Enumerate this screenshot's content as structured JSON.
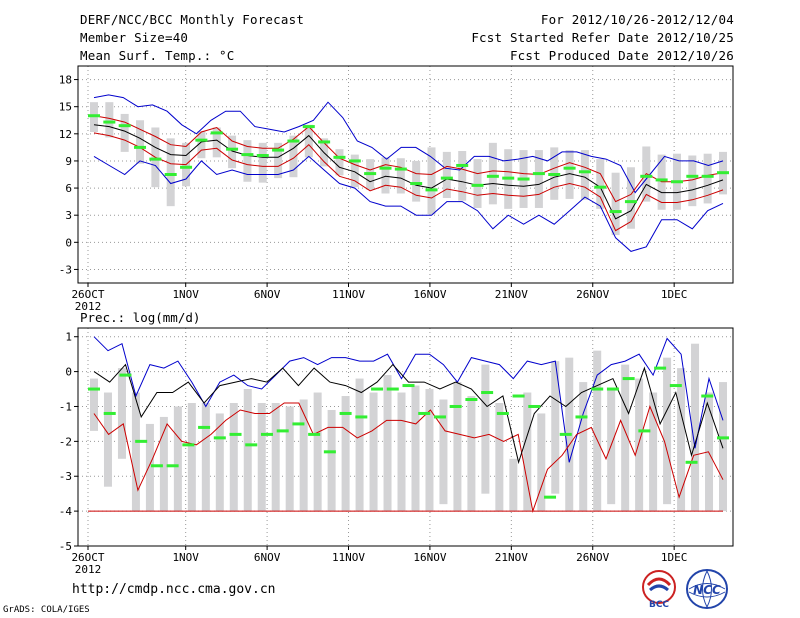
{
  "header": {
    "title": "DERF/NCC/BCC Monthly Forecast",
    "member_size": "Member Size=40",
    "variable": "Mean Surf. Temp.: °C",
    "period": "For 2012/10/26-2012/12/04",
    "started": "Fcst Started Refer Date 2012/10/25",
    "produced": "Fcst Produced Date 2012/10/26"
  },
  "footer": {
    "url": "http://cmdp.ncc.cma.gov.cn",
    "grads": "GrADS: COLA/IGES",
    "logo_bcc": "BCC",
    "logo_ncc": "NCC"
  },
  "colors": {
    "max_min": "#0000cc",
    "spread": "#cc0000",
    "mean": "#000000",
    "observed": "#33ee33",
    "bars": "#d3d3d5",
    "zero_line": "#cc0000"
  },
  "chart_data": [
    {
      "type": "line",
      "title": "Mean Surf. Temp.: °C",
      "x_tick_labels": [
        "26OCT",
        "1NOV",
        "6NOV",
        "11NOV",
        "16NOV",
        "21NOV",
        "26NOV",
        "1DEC"
      ],
      "x_tick_days": [
        0,
        6,
        11,
        16,
        21,
        26,
        31,
        36
      ],
      "year_label": "2012",
      "ylim": [
        -4.5,
        19.5
      ],
      "yticks": [
        -3,
        0,
        3,
        6,
        9,
        12,
        15,
        18
      ],
      "grid": true,
      "series": [
        {
          "name": "max",
          "values": [
            16,
            16.3,
            16,
            15,
            15.2,
            14.5,
            13,
            12,
            13.5,
            14.5,
            14.5,
            12.8,
            12.5,
            12.2,
            12.8,
            13.5,
            15.5,
            13.8,
            11.2,
            10.5,
            9.2,
            10.5,
            10.5,
            9.5,
            8.2,
            8,
            9.5,
            9.5,
            9,
            9.2,
            9.5,
            9,
            10,
            10,
            9.5,
            9.2,
            8.5,
            5.5,
            7.5,
            9.5,
            9,
            9,
            8.5,
            9
          ]
        },
        {
          "name": "upper",
          "values": [
            14,
            13.7,
            13.3,
            12.5,
            11.7,
            10.8,
            10.6,
            12.2,
            12.7,
            11.2,
            10.6,
            10.4,
            10.4,
            11.4,
            12.8,
            11,
            9.3,
            8.6,
            8,
            8.6,
            8.3,
            7.6,
            7.5,
            8.4,
            8.1,
            7.6,
            7.9,
            7.8,
            7.6,
            7.5,
            8.2,
            8.8,
            8.3,
            7.6,
            4.5,
            5.3,
            7.6,
            6.7,
            6.7,
            6.9,
            7.4,
            7.7
          ]
        },
        {
          "name": "mean",
          "values": [
            13,
            12.8,
            12.3,
            11.5,
            10.5,
            9.7,
            9.6,
            11.1,
            11.3,
            10.1,
            9.6,
            9.4,
            9.4,
            10.4,
            11.8,
            9.9,
            8.3,
            7.8,
            6.7,
            7.3,
            7.1,
            6.3,
            6,
            7,
            6.7,
            6.3,
            6.5,
            6.3,
            6.2,
            6.4,
            7.2,
            7.6,
            7.2,
            6.1,
            2.6,
            3.5,
            6.4,
            5.5,
            5.5,
            5.8,
            6.3,
            6.9
          ]
        },
        {
          "name": "lower",
          "values": [
            12.1,
            11.8,
            11.3,
            10.5,
            9.4,
            8.7,
            8.6,
            10.2,
            10.4,
            9.1,
            8.6,
            8.4,
            8.4,
            9.3,
            10.8,
            8.9,
            7.3,
            6.8,
            5.7,
            6.3,
            6.1,
            5.2,
            4.9,
            5.9,
            5.6,
            5.2,
            5.4,
            5.2,
            5.1,
            5.3,
            6.1,
            6.5,
            6.1,
            5,
            1.3,
            2.3,
            5.3,
            4.4,
            4.4,
            4.7,
            5.2,
            5.8
          ]
        },
        {
          "name": "min",
          "values": [
            9.5,
            8.5,
            7.5,
            9,
            8.5,
            6.5,
            7,
            9,
            7.5,
            8,
            7.5,
            7.5,
            7.5,
            8,
            9.5,
            8,
            6.5,
            6,
            4.5,
            4,
            4,
            3,
            3,
            4.5,
            4.5,
            3.5,
            1.5,
            3,
            2,
            3,
            2,
            3.5,
            5,
            4,
            0.5,
            -1,
            -0.5,
            2.5,
            2.5,
            1.5,
            3.5,
            4.3
          ]
        },
        {
          "name": "observed",
          "values": [
            14,
            13.3,
            12.9,
            10.5,
            9.2,
            7.5,
            8.3,
            11.3,
            12.1,
            10.3,
            9.7,
            9.6,
            10.2,
            11.2,
            12.8,
            11.1,
            9.4,
            9,
            7.6,
            8.2,
            8.1,
            6.5,
            5.8,
            7.1,
            8.5,
            6.3,
            7.3,
            7.1,
            7,
            7.6,
            7.5,
            8.2,
            7.8,
            6.1,
            3.4,
            4.5,
            7.3,
            6.9,
            6.7,
            7.3,
            7.3,
            7.7
          ]
        },
        {
          "name": "bar_top",
          "values": [
            15.5,
            15.5,
            14.2,
            13.5,
            12.7,
            11.5,
            11,
            12.3,
            12.7,
            11.8,
            11.3,
            11,
            11,
            11.8,
            13,
            11.5,
            10.3,
            9.7,
            9.2,
            9.4,
            9.3,
            9,
            10.5,
            10,
            10.1,
            9.2,
            11,
            10.3,
            10.2,
            10.2,
            10.5,
            10.2,
            10.2,
            9.2,
            7.7,
            8.3,
            10.6,
            9.7,
            9.8,
            9.6,
            9.8,
            10
          ]
        },
        {
          "name": "bar_bottom",
          "values": [
            12.2,
            11.6,
            10,
            8.7,
            6.1,
            4,
            6.2,
            9.3,
            9.4,
            8.2,
            6.7,
            6.6,
            7.1,
            7.2,
            9.4,
            8.4,
            7.4,
            6.1,
            5.8,
            5.4,
            5.4,
            4.5,
            3.1,
            4.9,
            4.6,
            3.8,
            4.2,
            3.7,
            3.8,
            3.8,
            4.7,
            4.8,
            4.7,
            3.7,
            0.8,
            1.5,
            4.5,
            3.6,
            3.6,
            4,
            4.3,
            5.3
          ]
        }
      ]
    },
    {
      "type": "line",
      "title": "Prec.: log(mm/d)",
      "x_tick_labels": [
        "26OCT",
        "1NOV",
        "6NOV",
        "11NOV",
        "16NOV",
        "21NOV",
        "26NOV",
        "1DEC"
      ],
      "x_tick_days": [
        0,
        6,
        11,
        16,
        21,
        26,
        31,
        36
      ],
      "year_label": "2012",
      "ylim": [
        -5,
        1.25
      ],
      "yticks": [
        -5,
        -4,
        -3,
        -2,
        -1,
        0,
        1
      ],
      "grid": true,
      "zero_reference": -4,
      "series": [
        {
          "name": "max",
          "values": [
            1,
            0.6,
            0.8,
            -0.7,
            0.2,
            0.1,
            0.3,
            -0.3,
            -1,
            -0.3,
            -0.1,
            -0.4,
            -0.5,
            -0.1,
            0.3,
            0.4,
            0.2,
            0.4,
            0.4,
            0.3,
            0.3,
            0.5,
            -0.2,
            0.5,
            0.5,
            0.2,
            -0.3,
            0.4,
            0.3,
            0.2,
            -0.2,
            0.3,
            0.2,
            0.3,
            -2.6,
            -1.2,
            -0.1,
            0.2,
            0.3,
            0.5,
            -0.1,
            0.95,
            0.5,
            -2.2,
            -0.2,
            -1.4
          ]
        },
        {
          "name": "mean",
          "values": [
            0,
            -0.3,
            0.2,
            -1.3,
            -0.6,
            -0.6,
            -0.3,
            -0.9,
            -0.4,
            -0.3,
            -0.2,
            -0.3,
            0.1,
            -0.4,
            0.1,
            -0.3,
            -0.4,
            -0.6,
            -0.3,
            0.2,
            -0.3,
            -0.3,
            -0.5,
            -0.3,
            -0.5,
            -1,
            -0.7,
            -2.6,
            -1.2,
            -0.7,
            -1,
            -0.6,
            -0.4,
            -0.2,
            -1.2,
            0.1,
            -1.5,
            -0.6,
            -2.4,
            -0.9,
            -2.2
          ]
        },
        {
          "name": "spread",
          "values": [
            -1.2,
            -1.8,
            -1.5,
            -3.4,
            -2.5,
            -1.5,
            -2,
            -2.1,
            -1.8,
            -1.4,
            -1.1,
            -1.2,
            -1.2,
            -0.9,
            -0.9,
            -1.8,
            -1.6,
            -1.6,
            -1.9,
            -1.7,
            -1.4,
            -1.4,
            -1.5,
            -1.1,
            -1.7,
            -1.8,
            -1.9,
            -1.8,
            -2,
            -1.8,
            -4,
            -2.8,
            -2.4,
            -1.8,
            -1.6,
            -2.5,
            -1.4,
            -2.4,
            -1,
            -2,
            -3.6,
            -2.4,
            -2.3,
            -3.1
          ]
        },
        {
          "name": "observed",
          "values": [
            -0.5,
            -1.2,
            -0.1,
            -2,
            -2.7,
            -2.7,
            -2.1,
            -1.6,
            -1.9,
            -1.8,
            -2.1,
            -1.8,
            -1.7,
            -1.5,
            -1.8,
            -2.3,
            -1.2,
            -1.3,
            -0.5,
            -0.5,
            -0.4,
            -1.2,
            -1.3,
            -1,
            -0.8,
            -0.6,
            -1.2,
            -0.7,
            -1,
            -3.6,
            -1.8,
            -1.3,
            -0.5,
            -0.5,
            -0.2,
            -1.7,
            0.1,
            -0.4,
            -2.6,
            -0.7,
            -1.9
          ]
        },
        {
          "name": "bar_top",
          "values": [
            -0.2,
            -0.6,
            0.1,
            -0.6,
            -1.5,
            -1.3,
            -1,
            -0.9,
            -0.9,
            -1.2,
            -0.9,
            -0.5,
            -0.9,
            -0.9,
            -1,
            -0.8,
            -0.6,
            -1.1,
            -0.7,
            -0.2,
            -0.6,
            -0.1,
            -0.6,
            -0.4,
            -0.5,
            -0.8,
            -0.3,
            -0.7,
            0.2,
            -0.9,
            -2.5,
            -0.6,
            -1.2,
            0.3,
            0.4,
            -0.3,
            0.6,
            -0.5,
            0.2,
            -0.2,
            -0.6,
            0.4,
            0.1,
            0.8,
            -0.6,
            -0.3
          ]
        },
        {
          "name": "bar_bottom",
          "values": [
            -1.7,
            -3.3,
            -2.5,
            -4,
            -4,
            -4,
            -4,
            -4,
            -4,
            -4,
            -4,
            -4,
            -4,
            -4,
            -4,
            -4,
            -4,
            -4,
            -4,
            -4,
            -4,
            -4,
            -4,
            -4,
            -4,
            -3.8,
            -4,
            -4,
            -3.5,
            -4,
            -4,
            -4,
            -4,
            -3.5,
            -4,
            -4,
            -4,
            -3.8,
            -4,
            -4,
            -4,
            -3.8,
            -4,
            -4,
            -4,
            -4
          ]
        }
      ]
    }
  ]
}
